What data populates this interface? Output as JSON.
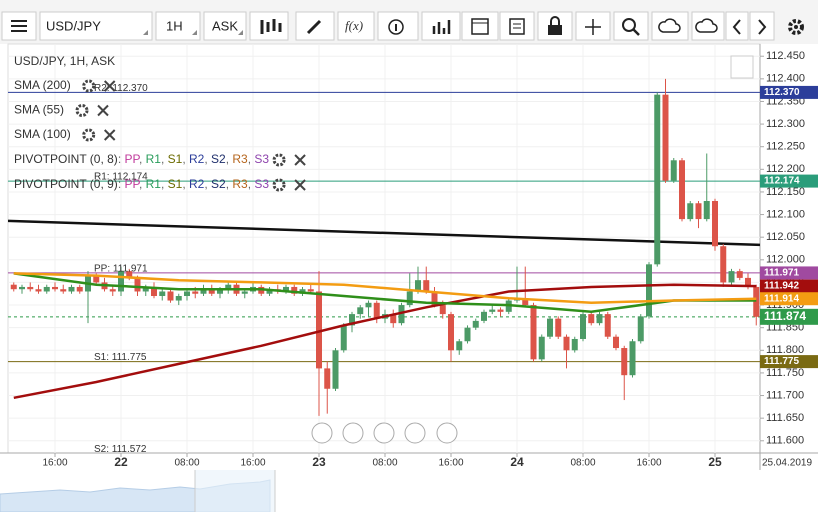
{
  "toolbar": {
    "symbol": "USD/JPY",
    "interval": "1H",
    "side": "ASK",
    "function_button": "f(x)"
  },
  "chart_data": {
    "type": "candlestick",
    "title": "USD/JPY, 1H, ASK",
    "categories": [
      null,
      null,
      null,
      null,
      null,
      "16:00",
      null,
      null,
      null,
      null,
      null,
      null,
      null,
      "22",
      null,
      null,
      null,
      null,
      null,
      null,
      null,
      "08:00",
      null,
      null,
      null,
      null,
      null,
      null,
      null,
      "16:00",
      null,
      null,
      null,
      null,
      null,
      null,
      null,
      "23",
      null,
      null,
      null,
      null,
      null,
      null,
      null,
      "08:00",
      null,
      null,
      null,
      null,
      null,
      null,
      null,
      "16:00",
      null,
      null,
      null,
      null,
      null,
      null,
      null,
      "24",
      null,
      null,
      null,
      null,
      null,
      null,
      null,
      "08:00",
      null,
      null,
      null,
      null,
      null,
      null,
      null,
      "16:00",
      null,
      null,
      null,
      null,
      null,
      null,
      null,
      "25",
      null,
      null,
      null,
      null,
      null
    ],
    "open": [
      111.945,
      111.935,
      111.94,
      111.935,
      111.93,
      111.94,
      111.935,
      111.93,
      111.94,
      111.93,
      111.965,
      111.95,
      111.935,
      111.93,
      111.975,
      111.96,
      111.93,
      111.94,
      111.92,
      111.93,
      111.91,
      111.92,
      111.93,
      111.925,
      111.935,
      111.925,
      111.935,
      111.945,
      111.925,
      111.93,
      111.94,
      111.925,
      111.935,
      111.93,
      111.94,
      111.925,
      111.935,
      111.93,
      111.76,
      111.715,
      111.8,
      111.855,
      111.88,
      111.895,
      111.905,
      111.87,
      111.88,
      111.86,
      111.9,
      111.93,
      111.955,
      111.93,
      111.9,
      111.88,
      111.8,
      111.82,
      111.85,
      111.865,
      111.885,
      111.89,
      111.885,
      111.91,
      111.915,
      111.9,
      111.78,
      111.83,
      111.87,
      111.83,
      111.8,
      111.825,
      111.88,
      111.86,
      111.88,
      111.83,
      111.805,
      111.745,
      111.82,
      111.875,
      111.99,
      112.365,
      112.175,
      112.22,
      112.09,
      112.125,
      112.09,
      112.13,
      112.03,
      111.95,
      111.975,
      111.96,
      111.94
    ],
    "high": [
      111.95,
      111.945,
      111.95,
      111.945,
      111.945,
      111.95,
      111.945,
      111.945,
      111.945,
      111.975,
      111.97,
      111.96,
      111.945,
      111.985,
      111.98,
      111.965,
      111.945,
      111.95,
      111.935,
      111.935,
      111.925,
      111.935,
      111.94,
      111.945,
      111.945,
      111.94,
      111.95,
      111.95,
      111.935,
      111.95,
      111.945,
      111.94,
      111.945,
      111.945,
      111.945,
      111.94,
      111.945,
      111.975,
      111.775,
      111.805,
      111.86,
      111.885,
      111.9,
      111.91,
      111.91,
      111.89,
      111.89,
      111.905,
      111.97,
      111.985,
      111.985,
      111.94,
      111.91,
      111.885,
      111.825,
      111.855,
      111.87,
      111.89,
      111.9,
      111.895,
      111.915,
      111.985,
      111.985,
      111.905,
      111.835,
      111.875,
      111.875,
      111.835,
      111.83,
      111.885,
      111.885,
      111.885,
      111.885,
      111.835,
      111.81,
      111.825,
      111.88,
      111.995,
      112.37,
      112.4,
      112.225,
      112.225,
      112.13,
      112.13,
      112.235,
      112.135,
      112.035,
      111.98,
      111.98,
      111.97,
      111.945
    ],
    "low": [
      111.93,
      111.925,
      111.93,
      111.925,
      111.925,
      111.93,
      111.925,
      111.925,
      111.925,
      111.86,
      111.945,
      111.93,
      111.92,
      111.92,
      111.955,
      111.92,
      111.92,
      111.915,
      111.91,
      111.905,
      111.9,
      111.91,
      111.915,
      111.92,
      111.92,
      111.915,
      111.925,
      111.92,
      111.915,
      111.925,
      111.92,
      111.92,
      111.925,
      111.925,
      111.92,
      111.92,
      111.925,
      111.655,
      111.66,
      111.71,
      111.795,
      111.84,
      111.87,
      111.875,
      111.86,
      111.86,
      111.85,
      111.855,
      111.895,
      111.925,
      111.925,
      111.895,
      111.87,
      111.775,
      111.79,
      111.815,
      111.845,
      111.86,
      111.88,
      111.875,
      111.88,
      111.905,
      111.895,
      111.775,
      111.775,
      111.825,
      111.825,
      111.76,
      111.795,
      111.82,
      111.855,
      111.855,
      111.825,
      111.8,
      111.69,
      111.74,
      111.815,
      111.87,
      111.985,
      112.17,
      112.17,
      112.085,
      112.085,
      112.07,
      112.085,
      112.02,
      111.94,
      111.945,
      111.955,
      111.935,
      111.855
    ],
    "close": [
      111.935,
      111.94,
      111.935,
      111.93,
      111.94,
      111.935,
      111.93,
      111.94,
      111.93,
      111.965,
      111.95,
      111.935,
      111.93,
      111.975,
      111.96,
      111.93,
      111.94,
      111.92,
      111.93,
      111.91,
      111.92,
      111.93,
      111.925,
      111.935,
      111.925,
      111.935,
      111.945,
      111.925,
      111.93,
      111.94,
      111.925,
      111.935,
      111.93,
      111.94,
      111.925,
      111.935,
      111.93,
      111.76,
      111.715,
      111.8,
      111.855,
      111.88,
      111.895,
      111.905,
      111.87,
      111.88,
      111.86,
      111.9,
      111.93,
      111.955,
      111.93,
      111.9,
      111.88,
      111.8,
      111.82,
      111.85,
      111.865,
      111.885,
      111.89,
      111.885,
      111.91,
      111.915,
      111.9,
      111.78,
      111.83,
      111.87,
      111.83,
      111.8,
      111.825,
      111.88,
      111.86,
      111.88,
      111.83,
      111.805,
      111.745,
      111.82,
      111.875,
      111.99,
      112.365,
      112.175,
      112.22,
      112.09,
      112.125,
      112.09,
      112.13,
      112.03,
      111.95,
      111.975,
      111.96,
      111.94,
      111.874
    ],
    "up_color": "#4c9a66",
    "down_color": "#dc5448",
    "ylim": [
      111.573,
      112.477
    ],
    "yticks": [
      {
        "value": 112.45,
        "label": "112.450"
      },
      {
        "value": 112.4,
        "label": "112.400"
      },
      {
        "value": 112.35,
        "label": "112.350"
      },
      {
        "value": 112.3,
        "label": "112.300"
      },
      {
        "value": 112.25,
        "label": "112.250"
      },
      {
        "value": 112.2,
        "label": "112.200"
      },
      {
        "value": 112.15,
        "label": "112.150"
      },
      {
        "value": 112.1,
        "label": "112.100"
      },
      {
        "value": 112.05,
        "label": "112.050"
      },
      {
        "value": 112.0,
        "label": "112.000"
      },
      {
        "value": 111.95,
        "label": "111.950"
      },
      {
        "value": 111.9,
        "label": "111.900"
      },
      {
        "value": 111.85,
        "label": "111.850"
      },
      {
        "value": 111.8,
        "label": "111.800"
      },
      {
        "value": 111.75,
        "label": "111.750"
      },
      {
        "value": 111.7,
        "label": "111.700"
      },
      {
        "value": 111.65,
        "label": "111.650"
      },
      {
        "value": 111.6,
        "label": "111.600"
      }
    ],
    "grid": true,
    "series": [
      {
        "name": "SMA (200)",
        "color": "#a30d0d",
        "x": [
          0,
          10,
          20,
          30,
          40,
          50,
          60,
          70,
          80,
          90
        ],
        "values": [
          111.695,
          111.73,
          111.77,
          111.81,
          111.855,
          111.895,
          111.93,
          111.94,
          111.945,
          111.942
        ]
      },
      {
        "name": "SMA (55)",
        "color": "#2f8f1a",
        "x": [
          0,
          10,
          20,
          30,
          40,
          50,
          60,
          70,
          80,
          90
        ],
        "values": [
          111.97,
          111.945,
          111.935,
          111.935,
          111.92,
          111.905,
          111.9,
          111.885,
          111.91,
          111.91
        ]
      },
      {
        "name": "SMA (100)",
        "color": "#f39c12",
        "x": [
          0,
          10,
          20,
          30,
          40,
          50,
          60,
          70,
          80,
          90
        ],
        "values": [
          111.97,
          111.965,
          111.955,
          111.95,
          111.945,
          111.93,
          111.915,
          111.905,
          111.91,
          111.914
        ]
      }
    ],
    "series_value_labels": [
      {
        "series": 0
      },
      {
        "series": 2
      }
    ],
    "pivot_legends": [
      "PIVOTPOINT (0, 8)",
      "PIVOTPOINT (0, 9)"
    ],
    "pivot_prefix": ": ",
    "pivot_separator": ", ",
    "pivot_names": [
      {
        "name": "PP",
        "color": "#c0399b"
      },
      {
        "name": "R1",
        "color": "#2a9d5c"
      },
      {
        "name": "S1",
        "color": "#6b6b00"
      },
      {
        "name": "R2",
        "color": "#2c3e9a"
      },
      {
        "name": "S2",
        "color": "#1f2f6b"
      },
      {
        "name": "R3",
        "color": "#b5651d"
      },
      {
        "name": "S3",
        "color": "#8e44ad"
      }
    ],
    "levels": [
      {
        "label": "R2: 112.370",
        "value": 112.37,
        "value_label": "112.370",
        "color": "#2c3e9a"
      },
      {
        "label": "R1: 112.174",
        "value": 112.174,
        "value_label": "112.174",
        "color": "#2a9d7a"
      },
      {
        "label": "PP: 111.971",
        "value": 111.971,
        "value_label": "111.971",
        "color": "#a04aa0"
      },
      {
        "label": "S1: 111.775",
        "value": 111.775,
        "value_label": "111.775",
        "color": "#7a6a12"
      },
      {
        "label": "S2: 111.572",
        "value": 111.572,
        "color": "#1f2f6b"
      }
    ],
    "trendline": [
      112.086,
      112.033
    ],
    "last_price": 111.874,
    "last_price_color": "#2f9a4a",
    "crosshair_date": "25.04.2019"
  }
}
